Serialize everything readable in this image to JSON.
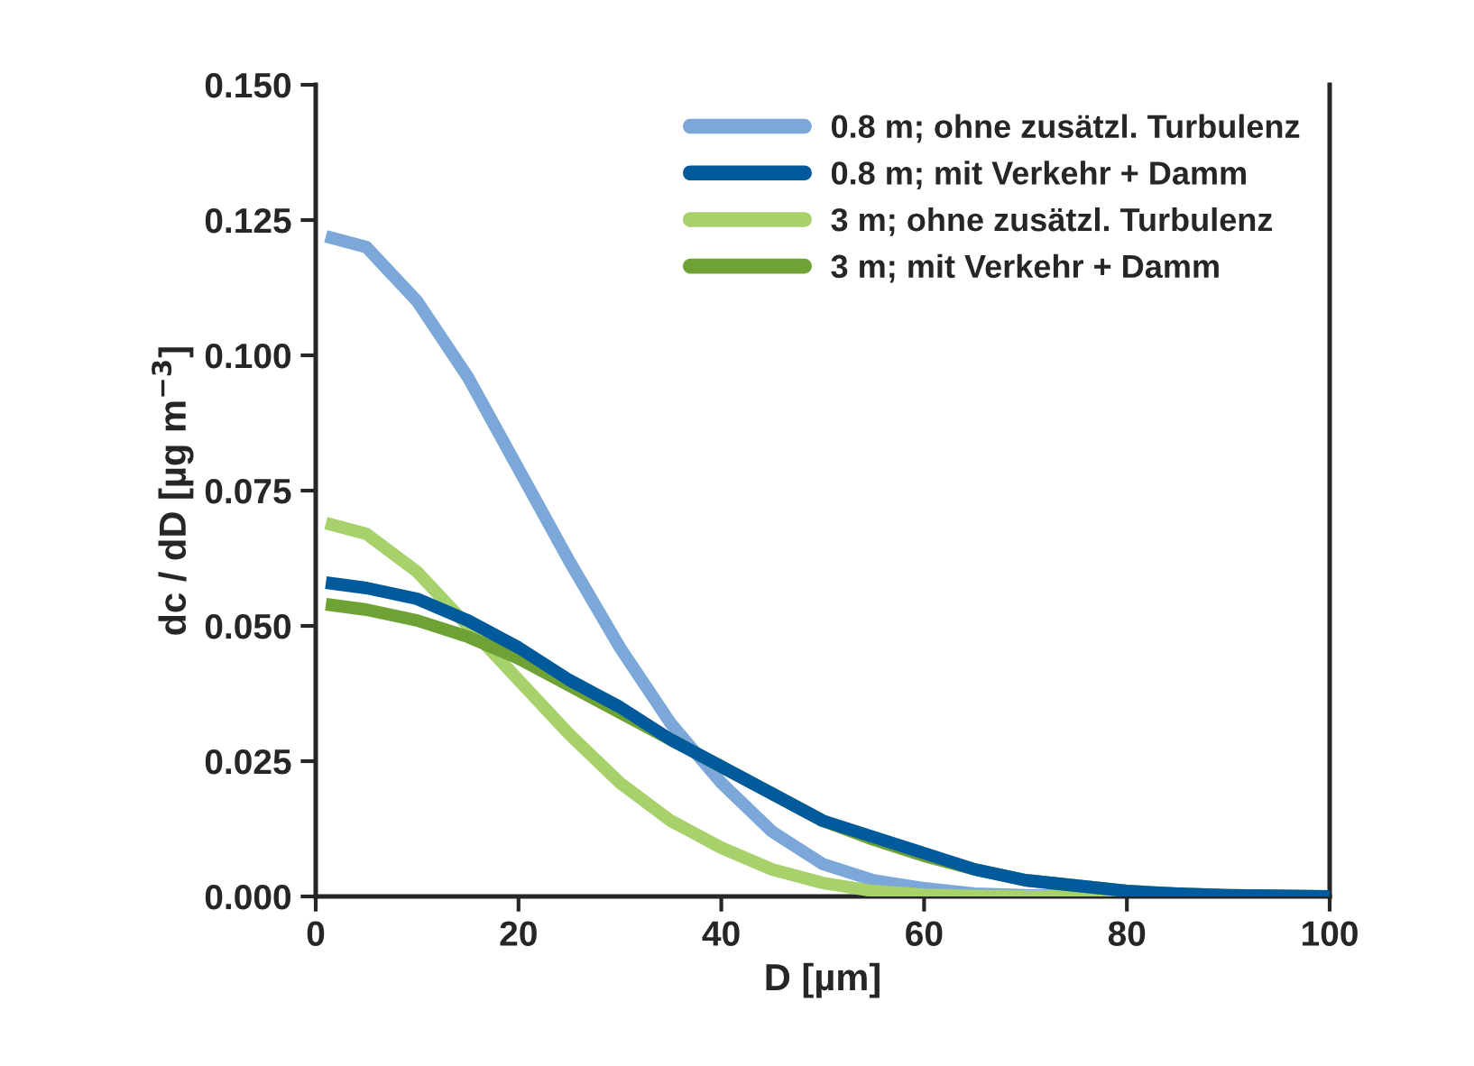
{
  "chart_data": {
    "type": "line",
    "xlabel": "D [µm]",
    "ylabel": "dc / dD [µg m$^{−3}$]",
    "xlim": [
      0,
      100
    ],
    "ylim": [
      0,
      0.15
    ],
    "xticks": [
      0,
      20,
      40,
      60,
      80,
      100
    ],
    "yticks": [
      {
        "value": 0,
        "label": "0.000"
      },
      {
        "value": 0.025,
        "label": "0.025"
      },
      {
        "value": 0.05,
        "label": "0.050"
      },
      {
        "value": 0.075,
        "label": "0.075"
      },
      {
        "value": 0.1,
        "label": "0.100"
      },
      {
        "value": 0.125,
        "label": "0.125"
      },
      {
        "value": 0.15,
        "label": "0.150"
      }
    ],
    "grid": false,
    "legend": "top right",
    "line_style": "solid",
    "marker": "none",
    "x": [
      1,
      5,
      10,
      15,
      20,
      25,
      30,
      35,
      40,
      45,
      50,
      55,
      60,
      65,
      70,
      75,
      80,
      85,
      90,
      100
    ],
    "series": [
      {
        "name": "0.8 m; ohne zusätzl. Turbulenz",
        "color": "#7ba7d9",
        "values": [
          0.122,
          0.12,
          0.11,
          0.096,
          0.079,
          0.062,
          0.046,
          0.032,
          0.021,
          0.012,
          0.006,
          0.003,
          0.0015,
          0.0005,
          0.0002,
          null,
          0,
          0,
          0,
          0
        ]
      },
      {
        "name": "0.8 m; mit Verkehr + Damm",
        "color": "#005a9c",
        "values": [
          0.058,
          0.057,
          0.055,
          0.051,
          0.046,
          0.04,
          0.035,
          0.029,
          0.024,
          0.019,
          0.014,
          0.011,
          0.008,
          0.005,
          0.003,
          0.002,
          0.001,
          0.0005,
          0.0002,
          0
        ]
      },
      {
        "name": "3 m; ohne zusätzl. Turbulenz",
        "color": "#a6d16b",
        "values": [
          0.069,
          0.067,
          0.06,
          0.05,
          0.04,
          0.03,
          0.021,
          0.014,
          0.009,
          0.005,
          0.0025,
          0.001,
          0.0003,
          0.0001,
          0,
          0,
          0,
          0,
          0,
          0
        ]
      },
      {
        "name": "3 m; mit Verkehr + Damm",
        "color": "#6fa234",
        "values": [
          0.054,
          0.053,
          0.051,
          0.048,
          0.044,
          0.039,
          0.034,
          0.029,
          0.024,
          0.019,
          0.014,
          0.0105,
          0.0075,
          0.005,
          0.003,
          0.002,
          0.001,
          0.0005,
          0.0002,
          0
        ]
      }
    ]
  }
}
